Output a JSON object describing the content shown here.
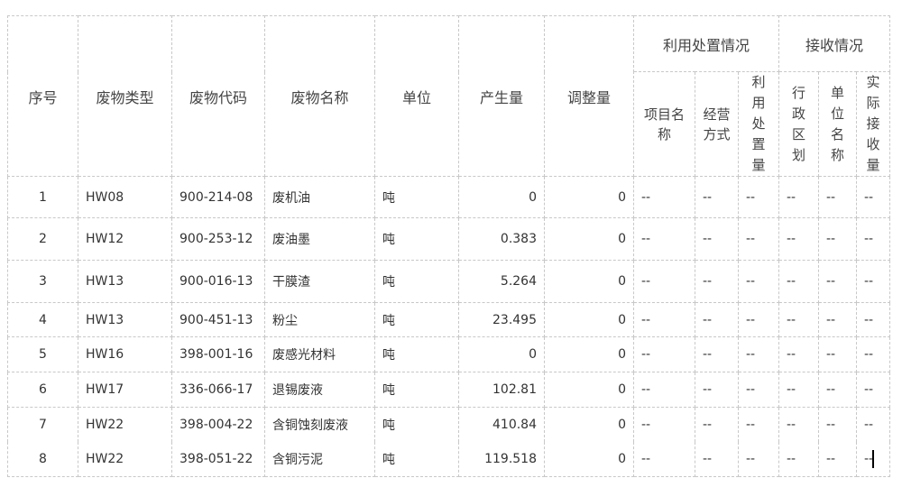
{
  "headers": {
    "seq": "序号",
    "waste_type": "废物类型",
    "waste_code": "废物代码",
    "waste_name": "废物名称",
    "unit": "单位",
    "production": "产生量",
    "adjustment": "调整量",
    "utilization_group": "利用处置情况",
    "receiving_group": "接收情况",
    "project_name": "项目名称",
    "operation_mode": "经营方式",
    "utilization_amount": "利用处置量",
    "admin_region": "行政区划",
    "unit_name": "单位名称",
    "actual_received": "实际接收量"
  },
  "rows": [
    {
      "seq": "1",
      "type": "HW08",
      "code": "900-214-08",
      "name": "废机油",
      "unit": "吨",
      "production": "0",
      "adjustment": "0",
      "project": "--",
      "mode": "--",
      "util": "--",
      "region": "--",
      "uname": "--",
      "received": "--"
    },
    {
      "seq": "2",
      "type": "HW12",
      "code": "900-253-12",
      "name": "废油墨",
      "unit": "吨",
      "production": "0.383",
      "adjustment": "0",
      "project": "--",
      "mode": "--",
      "util": "--",
      "region": "--",
      "uname": "--",
      "received": "--"
    },
    {
      "seq": "3",
      "type": "HW13",
      "code": "900-016-13",
      "name": "干膜渣",
      "unit": "吨",
      "production": "5.264",
      "adjustment": "0",
      "project": "--",
      "mode": "--",
      "util": "--",
      "region": "--",
      "uname": "--",
      "received": "--"
    },
    {
      "seq": "4",
      "type": "HW13",
      "code": "900-451-13",
      "name": "粉尘",
      "unit": "吨",
      "production": "23.495",
      "adjustment": "0",
      "project": "--",
      "mode": "--",
      "util": "--",
      "region": "--",
      "uname": "--",
      "received": "--"
    },
    {
      "seq": "5",
      "type": "HW16",
      "code": "398-001-16",
      "name": "废感光材料",
      "unit": "吨",
      "production": "0",
      "adjustment": "0",
      "project": "--",
      "mode": "--",
      "util": "--",
      "region": "--",
      "uname": "--",
      "received": "--"
    },
    {
      "seq": "6",
      "type": "HW17",
      "code": "336-066-17",
      "name": "退锡废液",
      "unit": "吨",
      "production": "102.81",
      "adjustment": "0",
      "project": "--",
      "mode": "--",
      "util": "--",
      "region": "--",
      "uname": "--",
      "received": "--"
    },
    {
      "seq": "7",
      "type": "HW22",
      "code": "398-004-22",
      "name": "含铜蚀刻废液",
      "unit": "吨",
      "production": "410.84",
      "adjustment": "0",
      "project": "--",
      "mode": "--",
      "util": "--",
      "region": "--",
      "uname": "--",
      "received": "--"
    },
    {
      "seq": "8",
      "type": "HW22",
      "code": "398-051-22",
      "name": "含铜污泥",
      "unit": "吨",
      "production": "119.518",
      "adjustment": "0",
      "project": "--",
      "mode": "--",
      "util": "--",
      "region": "--",
      "uname": "--",
      "received": "--"
    }
  ]
}
